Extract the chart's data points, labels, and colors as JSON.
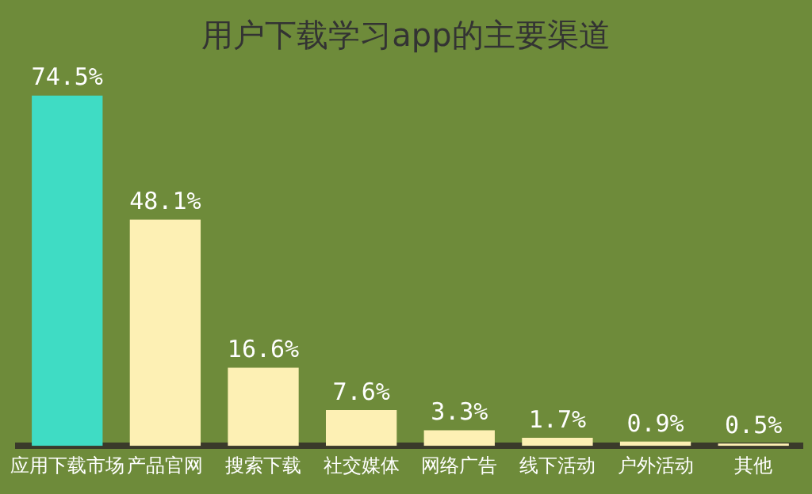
{
  "chart_data": {
    "type": "bar",
    "title": "用户下载学习app的主要渠道",
    "categories": [
      "应用下载市场",
      "产品官网",
      "搜索下载",
      "社交媒体",
      "网络广告",
      "线下活动",
      "户外活动",
      "其他"
    ],
    "values": [
      74.5,
      48.1,
      16.6,
      7.6,
      3.3,
      1.7,
      0.9,
      0.5
    ],
    "colors": [
      "#3fdcc4",
      "#fdf0b4",
      "#fdf0b4",
      "#fdf0b4",
      "#fdf0b4",
      "#fdf0b4",
      "#fdf0b4",
      "#fdf0b4"
    ],
    "value_labels": [
      "74.5%",
      "48.1%",
      "16.6%",
      "7.6%",
      "3.3%",
      "1.7%",
      "0.9%",
      "0.5%"
    ],
    "grid": false,
    "legend": false
  }
}
